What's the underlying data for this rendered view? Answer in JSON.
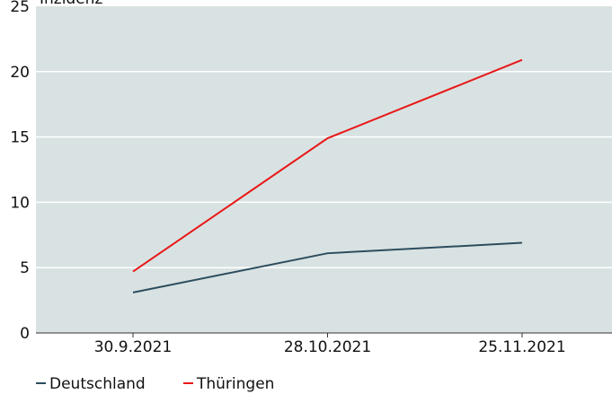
{
  "chart_data": {
    "type": "line",
    "title": "",
    "xlabel": "",
    "ylabel": "Inzidenz",
    "ylim": [
      0,
      25
    ],
    "yticks": [
      0,
      5,
      10,
      15,
      20,
      25
    ],
    "categories": [
      "30.9.2021",
      "28.10.2021",
      "25.11.2021"
    ],
    "grid": true,
    "legend_position": "bottom-left",
    "plot_background": "#d9e2e2",
    "series": [
      {
        "name": "Deutschland",
        "color": "#2c4d5e",
        "values": [
          3.1,
          6.1,
          6.9
        ]
      },
      {
        "name": "Thüringen",
        "color": "#e81818",
        "values": [
          4.7,
          14.9,
          20.9
        ]
      }
    ]
  }
}
